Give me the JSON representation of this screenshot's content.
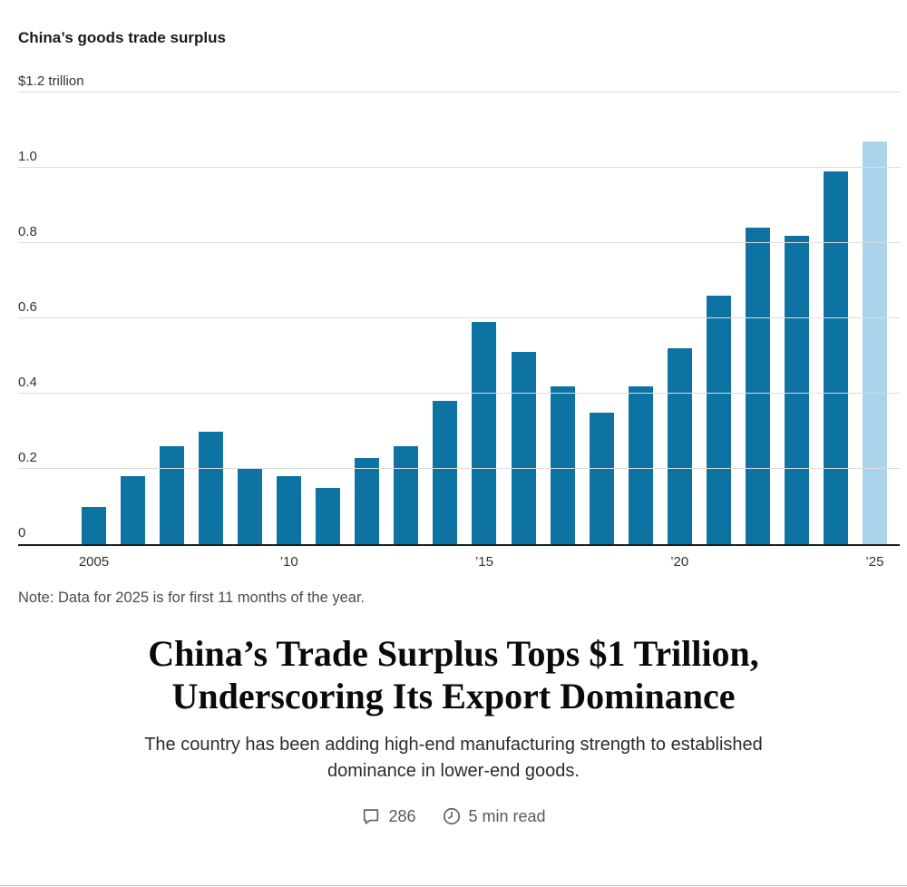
{
  "page": {
    "note": "Note: Data for 2025 is for first 11 months of the year.",
    "headline_lines": [
      "China’s Trade Surplus Tops $1 Trillion,",
      "Underscoring Its Export Dominance"
    ],
    "subheadline_lines": [
      "The country has been adding high-end manufacturing strength to established",
      "dominance in lower-end goods."
    ],
    "comments_count": "286",
    "read_time": "5 min read"
  },
  "chart_data": {
    "type": "bar",
    "title": "China’s goods trade surplus",
    "categories": [
      2005,
      2006,
      2007,
      2008,
      2009,
      2010,
      2011,
      2012,
      2013,
      2014,
      2015,
      2016,
      2017,
      2018,
      2019,
      2020,
      2021,
      2022,
      2023,
      2024,
      2025
    ],
    "values": [
      0.1,
      0.18,
      0.26,
      0.3,
      0.2,
      0.18,
      0.15,
      0.23,
      0.26,
      0.38,
      0.59,
      0.51,
      0.42,
      0.35,
      0.42,
      0.52,
      0.66,
      0.84,
      0.82,
      0.99,
      1.07
    ],
    "x_tick_labels": [
      "2005",
      "",
      "",
      "",
      "",
      "’10",
      "",
      "",
      "",
      "",
      "’15",
      "",
      "",
      "",
      "",
      "’20",
      "",
      "",
      "",
      "",
      "’25"
    ],
    "y_axis": [
      {
        "value": 0,
        "label": "0"
      },
      {
        "value": 0.2,
        "label": "0.2"
      },
      {
        "value": 0.4,
        "label": "0.4"
      },
      {
        "value": 0.6,
        "label": "0.6"
      },
      {
        "value": 0.8,
        "label": "0.8"
      },
      {
        "value": 1.0,
        "label": "1.0"
      },
      {
        "value": 1.2,
        "label": "$1.2 trillion"
      }
    ],
    "ylim": [
      0,
      1.2
    ],
    "grid": true,
    "legend": "none",
    "bar_color": "#0d73a3",
    "highlight_color": "#a9d4ec",
    "highlight_index": 20
  }
}
